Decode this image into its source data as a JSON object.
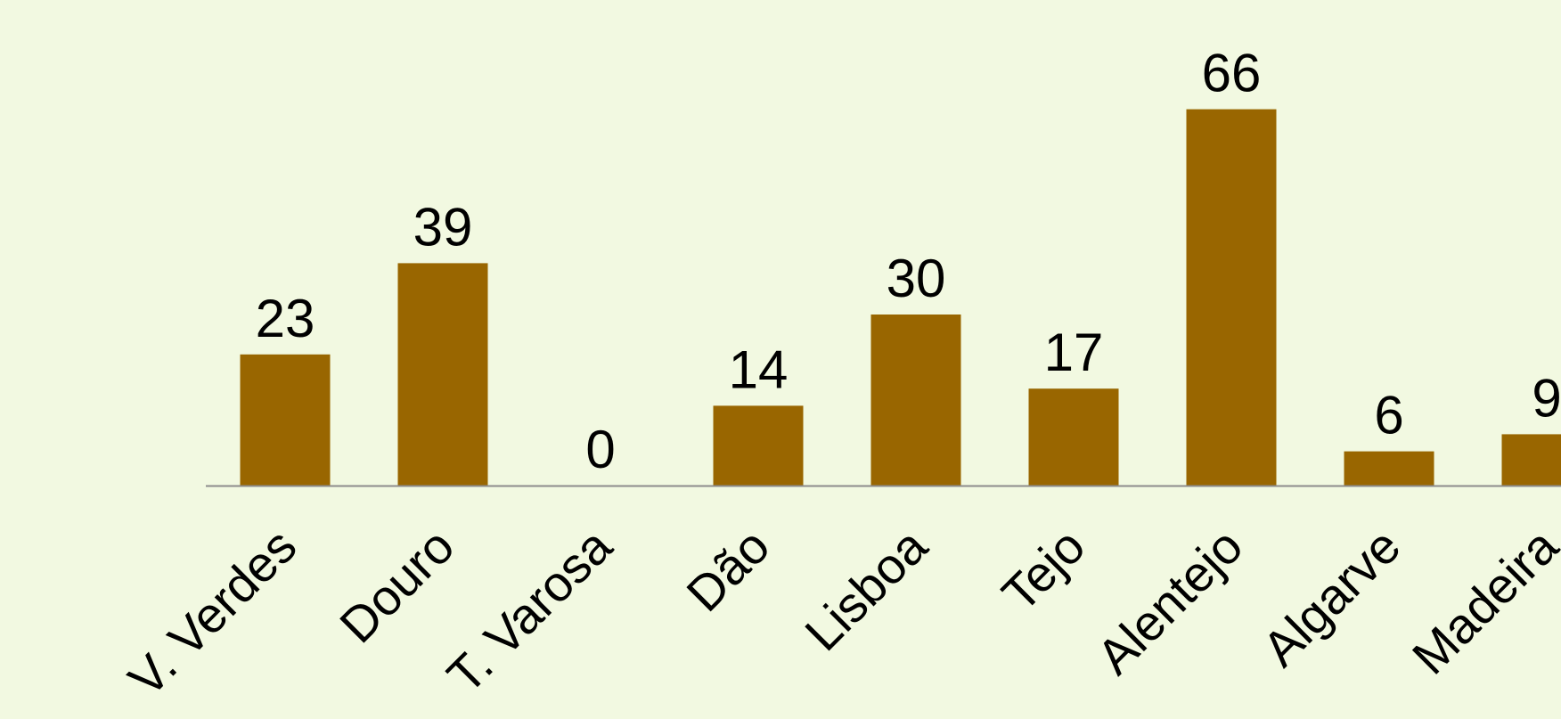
{
  "chart_data": {
    "type": "bar",
    "categories": [
      "V. Verdes",
      "Douro",
      "T. Varosa",
      "Dão",
      "Lisboa",
      "Tejo",
      "Alentejo",
      "Algarve",
      "Madeira"
    ],
    "values": [
      23,
      39,
      0,
      14,
      30,
      17,
      66,
      6,
      9
    ],
    "title": "",
    "xlabel": "",
    "ylabel": "",
    "ylim": [
      0,
      66
    ],
    "grid": false,
    "legend": "none",
    "data_labels": true,
    "colors": {
      "bar": "#996600",
      "background": "#f2f9e1",
      "axis": "#8c8c8c",
      "text": "#000000"
    }
  }
}
